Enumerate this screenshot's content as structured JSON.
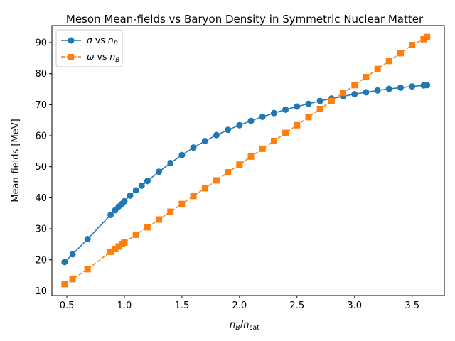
{
  "chart_data": {
    "type": "line",
    "title": "Meson Mean-fields vs Baryon Density in Symmetric Nuclear Matter",
    "xlabel": {
      "main": "n",
      "sub": "B",
      "sep": "/",
      "main2": "n",
      "sub2": "sat"
    },
    "ylabel": "Mean-fields [MeV]",
    "xlim": [
      0.37,
      3.78
    ],
    "ylim": [
      8.5,
      95.5
    ],
    "xticks": [
      "0.5",
      "1.0",
      "1.5",
      "2.0",
      "2.5",
      "3.0",
      "3.5"
    ],
    "yticks": [
      "10",
      "20",
      "30",
      "40",
      "50",
      "60",
      "70",
      "80",
      "90"
    ],
    "grid": false,
    "legend_position": "top-left",
    "series": [
      {
        "name": "σ vs n_B",
        "legend": {
          "sym": "σ",
          "mid": " vs ",
          "var": "n",
          "sub": "B"
        },
        "color": "#1f77b4",
        "marker": "circle",
        "linestyle": "solid",
        "x": [
          0.48,
          0.55,
          0.68,
          0.88,
          0.92,
          0.95,
          0.98,
          1.0,
          1.05,
          1.1,
          1.15,
          1.2,
          1.3,
          1.4,
          1.5,
          1.6,
          1.7,
          1.8,
          1.9,
          2.0,
          2.1,
          2.2,
          2.3,
          2.4,
          2.5,
          2.6,
          2.7,
          2.8,
          2.9,
          3.0,
          3.1,
          3.2,
          3.3,
          3.4,
          3.5,
          3.6,
          3.63
        ],
        "y": [
          19.3,
          21.8,
          26.7,
          34.5,
          36.0,
          37.2,
          38.1,
          38.9,
          40.7,
          42.4,
          43.9,
          45.4,
          48.4,
          51.2,
          53.8,
          56.2,
          58.3,
          60.2,
          61.9,
          63.4,
          64.8,
          66.1,
          67.3,
          68.4,
          69.4,
          70.3,
          71.2,
          72.0,
          72.7,
          73.4,
          74.0,
          74.6,
          75.1,
          75.5,
          75.9,
          76.2,
          76.3
        ]
      },
      {
        "name": "ω vs n_B",
        "legend": {
          "sym": "ω",
          "mid": " vs ",
          "var": "n",
          "sub": "B"
        },
        "color": "#ff7f0e",
        "marker": "square",
        "linestyle": "dashed",
        "x": [
          0.48,
          0.55,
          0.68,
          0.88,
          0.92,
          0.95,
          0.98,
          1.0,
          1.1,
          1.2,
          1.3,
          1.4,
          1.5,
          1.6,
          1.7,
          1.8,
          1.9,
          2.0,
          2.1,
          2.2,
          2.3,
          2.4,
          2.5,
          2.6,
          2.7,
          2.8,
          2.9,
          3.0,
          3.1,
          3.2,
          3.3,
          3.4,
          3.5,
          3.6,
          3.63
        ],
        "y": [
          12.2,
          13.8,
          17.0,
          22.6,
          23.5,
          24.3,
          25.1,
          25.6,
          28.1,
          30.5,
          33.0,
          35.5,
          38.0,
          40.6,
          43.1,
          45.6,
          48.2,
          50.7,
          53.3,
          55.8,
          58.3,
          60.9,
          63.4,
          66.0,
          68.6,
          71.2,
          73.8,
          76.3,
          78.9,
          81.5,
          84.1,
          86.6,
          89.2,
          91.1,
          91.8
        ]
      }
    ]
  }
}
